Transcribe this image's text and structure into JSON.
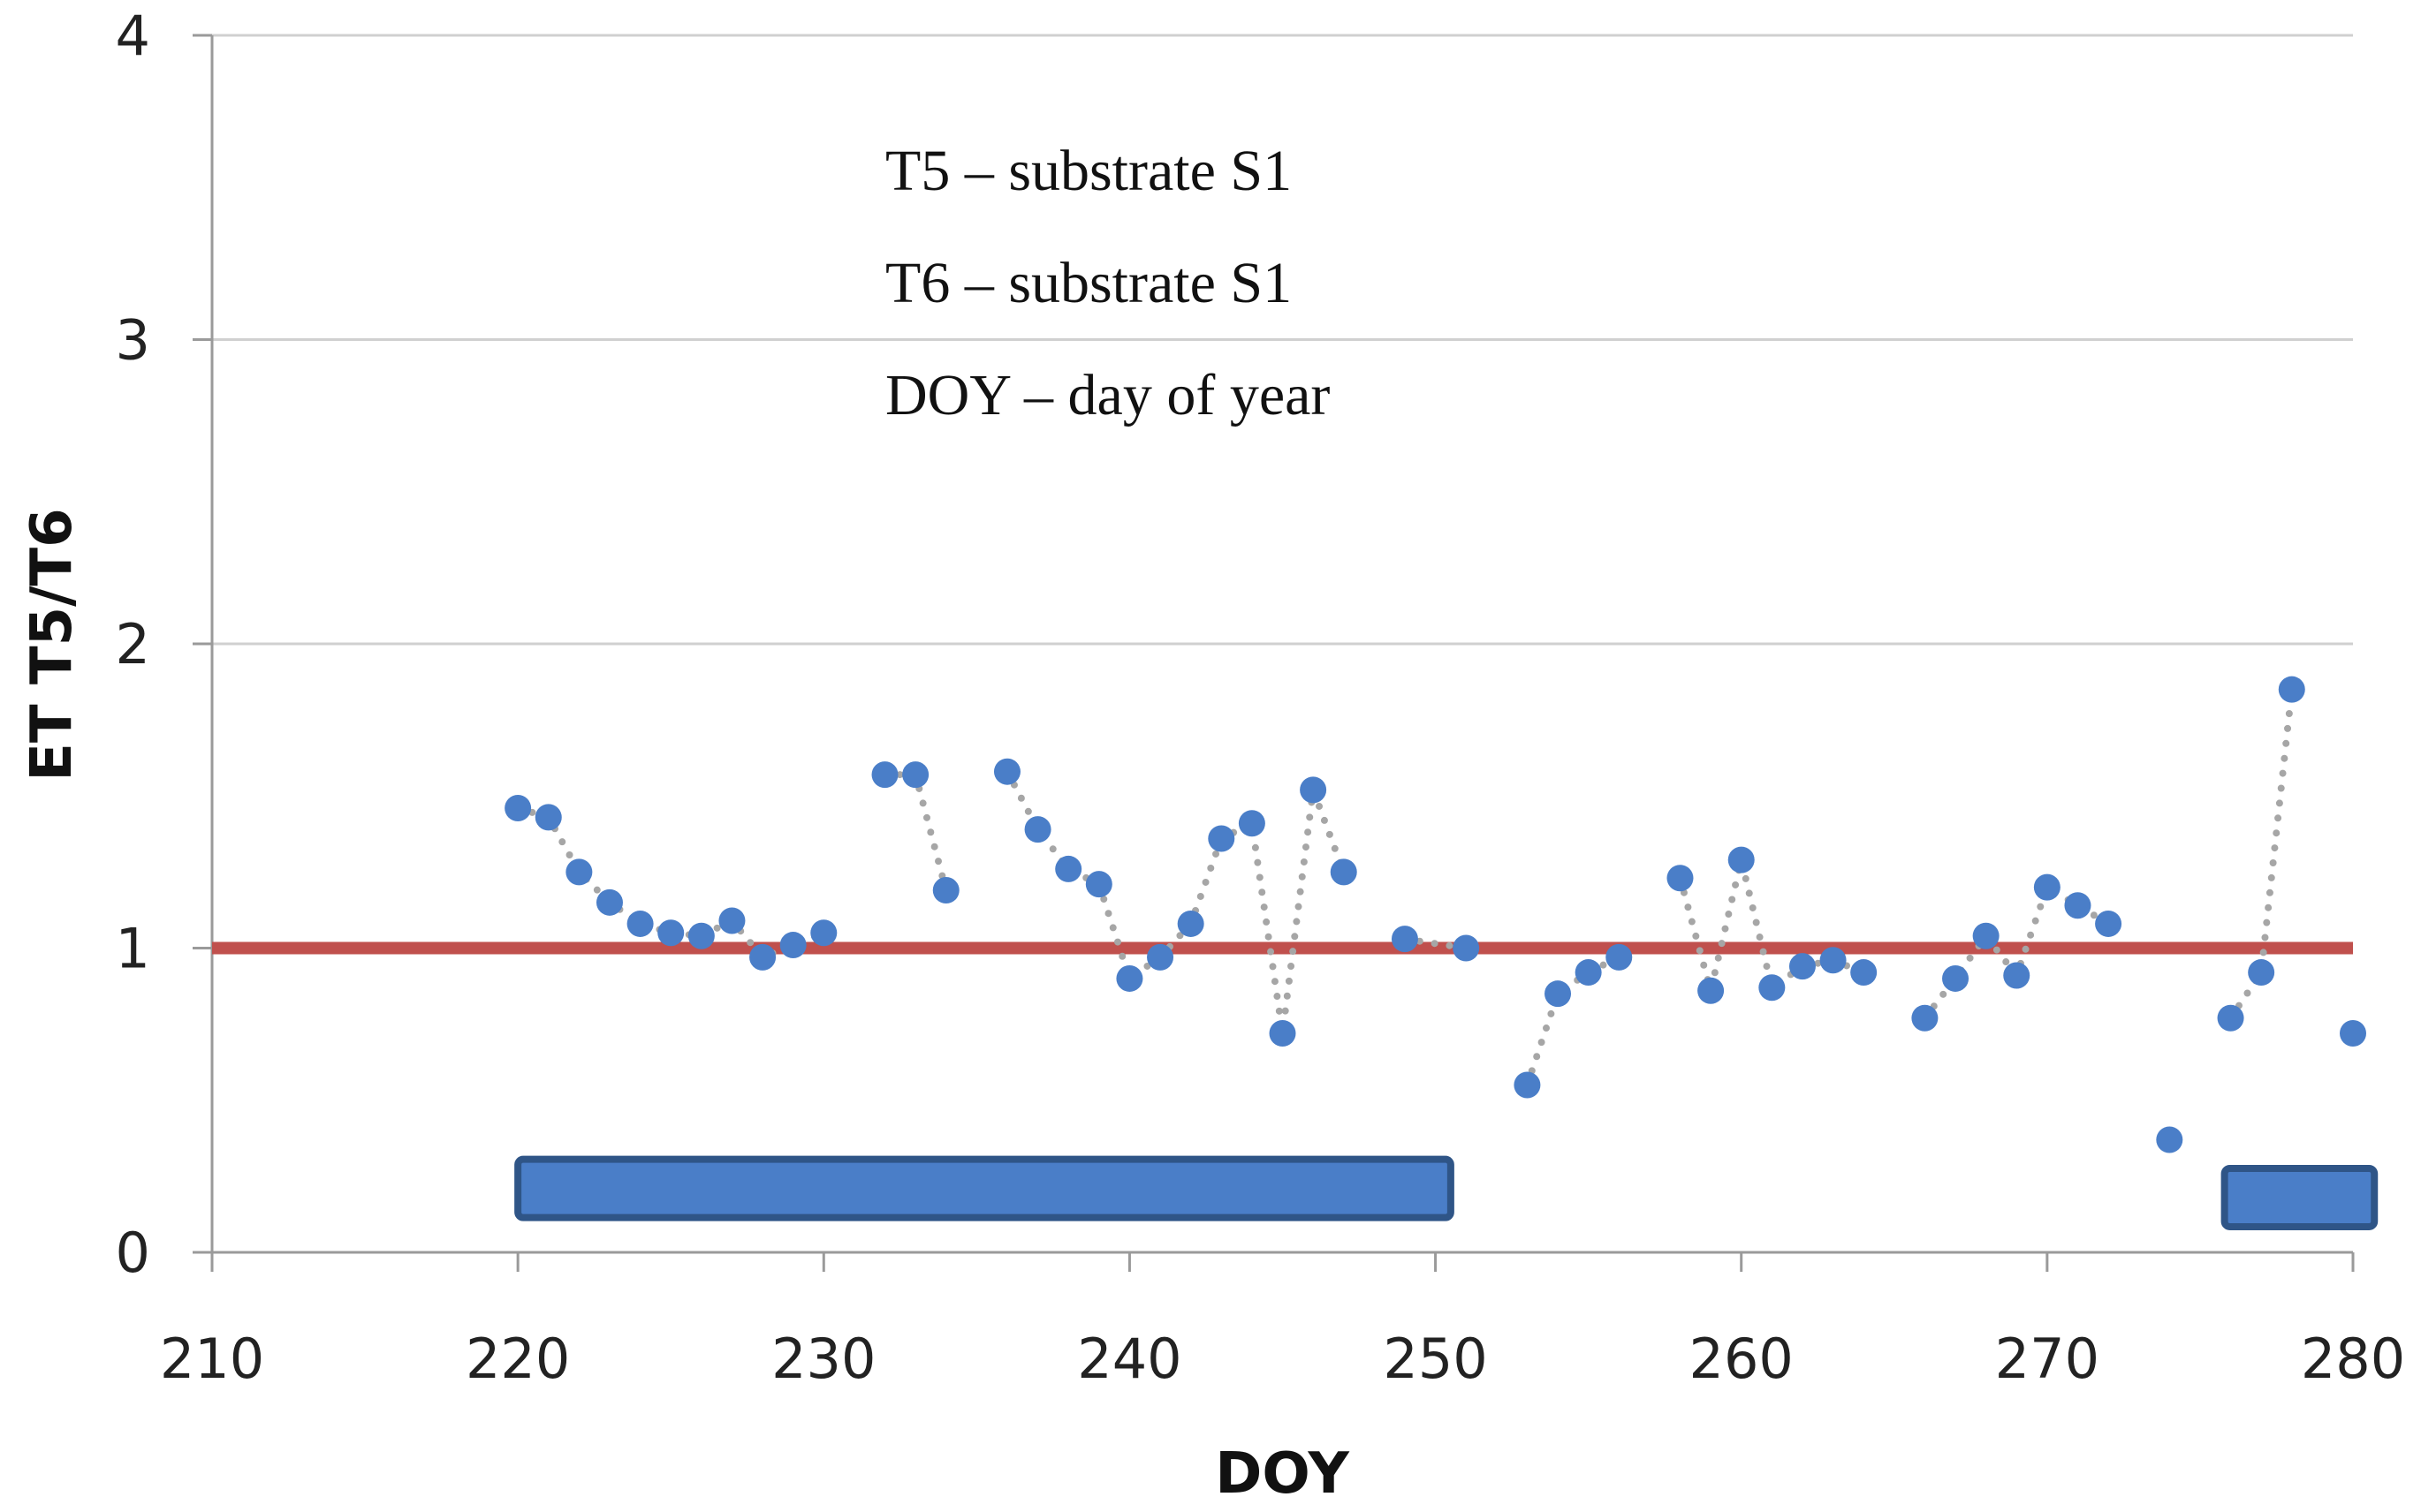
{
  "chart_data": {
    "type": "scatter",
    "title": "",
    "xlabel": "DOY",
    "ylabel": "ET T5/T6",
    "xlim": [
      210,
      280
    ],
    "ylim": [
      0,
      4
    ],
    "xticks": [
      210,
      220,
      230,
      240,
      250,
      260,
      270,
      280
    ],
    "yticks": [
      0,
      1,
      2,
      3,
      4
    ],
    "grid": true,
    "annotations": [
      "T5 – substrate S1",
      "T6 – substrate S1",
      "DOY – day of year"
    ],
    "reference_line": {
      "y": 1,
      "color": "#c0504d"
    },
    "series": [
      {
        "name": "ET T5/T6",
        "marker_color": "#4a7ec8",
        "connector": "dotted",
        "connector_color": "#a6a6a6",
        "segments": [
          [
            [
              220,
              1.46
            ],
            [
              221,
              1.43
            ],
            [
              222,
              1.25
            ],
            [
              223,
              1.15
            ],
            [
              224,
              1.08
            ],
            [
              225,
              1.05
            ],
            [
              226,
              1.04
            ],
            [
              227,
              1.09
            ],
            [
              228,
              0.97
            ],
            [
              229,
              1.01
            ],
            [
              230,
              1.05
            ]
          ],
          [
            [
              232,
              1.57
            ],
            [
              233,
              1.57
            ],
            [
              234,
              1.19
            ]
          ],
          [
            [
              236,
              1.58
            ],
            [
              237,
              1.39
            ],
            [
              238,
              1.26
            ],
            [
              239,
              1.21
            ],
            [
              240,
              0.9
            ],
            [
              241,
              0.97
            ],
            [
              242,
              1.08
            ],
            [
              243,
              1.36
            ],
            [
              244,
              1.41
            ],
            [
              245,
              0.72
            ],
            [
              246,
              1.52
            ],
            [
              247,
              1.25
            ]
          ],
          [
            [
              249,
              1.03
            ],
            [
              251,
              1.0
            ]
          ],
          [
            [
              253,
              0.55
            ],
            [
              254,
              0.85
            ],
            [
              255,
              0.92
            ],
            [
              256,
              0.97
            ]
          ],
          [
            [
              258,
              1.23
            ],
            [
              259,
              0.86
            ],
            [
              260,
              1.29
            ],
            [
              261,
              0.87
            ],
            [
              262,
              0.94
            ],
            [
              263,
              0.96
            ],
            [
              264,
              0.92
            ]
          ],
          [
            [
              266,
              0.77
            ],
            [
              267,
              0.9
            ],
            [
              268,
              1.04
            ],
            [
              269,
              0.91
            ],
            [
              270,
              1.2
            ],
            [
              271,
              1.14
            ],
            [
              272,
              1.08
            ]
          ],
          [
            [
              274,
              0.37
            ]
          ],
          [
            [
              276,
              0.77
            ],
            [
              277,
              0.92
            ],
            [
              278,
              1.85
            ]
          ],
          [
            [
              280,
              0.72
            ]
          ]
        ]
      }
    ],
    "bars": [
      {
        "x_start": 220,
        "x_end": 250.5,
        "y": 0.21,
        "color": "#4a7ec8"
      },
      {
        "x_start": 275.8,
        "x_end": 280.7,
        "y": 0.18,
        "color": "#4a7ec8"
      }
    ]
  }
}
